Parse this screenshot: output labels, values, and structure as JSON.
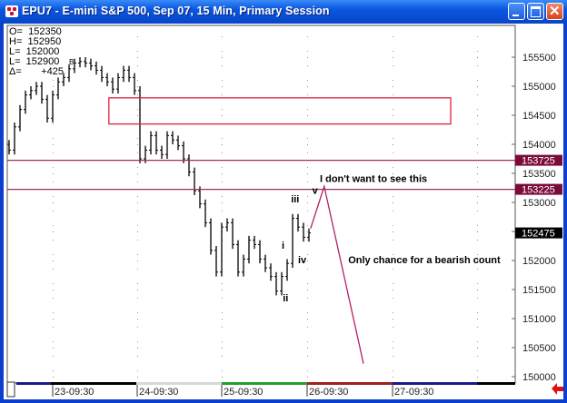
{
  "window": {
    "title": "EPU7 - E-mini S&P 500, Sep 07, 15 Min, Primary Session",
    "buttons": [
      "minimize",
      "maximize",
      "close"
    ]
  },
  "readout": {
    "open": "O=  152350",
    "high": "H=  152950",
    "low": "L=  152000",
    "last": "L=  152900",
    "last_suffix": "B",
    "change": "Δ=       +425"
  },
  "colors": {
    "bars": "#000000",
    "zone_box": "#e0203a",
    "level_lines": "#a03060",
    "projection": "#b0206a",
    "level_tag_bg": "#7a0a3a",
    "last_tag_bg": "#000000"
  },
  "chart_data": {
    "type": "bar",
    "price_axis": {
      "min": 150000,
      "max": 155500,
      "ticks": [
        150000,
        150500,
        151000,
        151500,
        152000,
        152500,
        153000,
        153500,
        154000,
        154500,
        155000,
        155500
      ],
      "grid": true
    },
    "time_axis": {
      "labels": [
        "23-09:30",
        "24-09:30",
        "25-09:30",
        "26-09:30",
        "27-09:30"
      ]
    },
    "session_colors": [
      "#1a1a8a",
      "#000000",
      "#d8d8d8",
      "#20a030",
      "#a02020",
      "#1a1a8a",
      "#000000"
    ],
    "closes": [
      153900,
      154300,
      154600,
      154850,
      154925,
      155000,
      154775,
      154450,
      154850,
      155075,
      155150,
      155300,
      155400,
      155425,
      155400,
      155350,
      155275,
      155150,
      155075,
      154950,
      155150,
      155275,
      155150,
      154925,
      153750,
      153900,
      154150,
      153900,
      153825,
      154150,
      154075,
      153975,
      153750,
      153525,
      153200,
      152975,
      152650,
      152175,
      151800,
      152575,
      152650,
      152275,
      151800,
      152025,
      152350,
      152275,
      152025,
      151875,
      151725,
      151475,
      151725,
      151950,
      152725,
      152575,
      152400,
      152475
    ],
    "levels": [
      153725,
      153225
    ],
    "level_tags": [
      "153725",
      "153225"
    ],
    "last_tag": "152475",
    "zone": {
      "top": 154800,
      "bottom": 154350,
      "from_bar": 18.3,
      "to_bar": 81
    },
    "projection": [
      {
        "bar": 55.3,
        "price": 152550
      },
      {
        "bar": 57.8,
        "price": 153275
      },
      {
        "bar": 65,
        "price": 150225
      }
    ],
    "annotations": [
      {
        "text": "I don't want to see this",
        "bar": 57,
        "price": 153350
      },
      {
        "text": "Only chance for a bearish count",
        "bar": 62.2,
        "price": 151950
      },
      {
        "text": "i",
        "bar": 50,
        "price": 152200
      },
      {
        "text": "ii",
        "bar": 50.2,
        "price": 151300
      },
      {
        "text": "iii",
        "bar": 51.7,
        "price": 153000
      },
      {
        "text": "iv",
        "bar": 53,
        "price": 151950
      },
      {
        "text": "v",
        "bar": 55.6,
        "price": 153150
      }
    ]
  }
}
